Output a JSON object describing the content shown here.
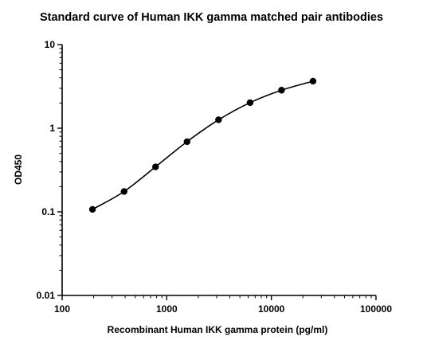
{
  "chart_data": {
    "type": "scatter",
    "title": "Standard curve of Human IKK gamma matched pair antibodies",
    "xlabel": "Recombinant Human IKK gamma protein (pg/ml)",
    "ylabel": "OD450",
    "xscale": "log",
    "yscale": "log",
    "xlim": [
      100,
      100000
    ],
    "ylim": [
      0.01,
      10
    ],
    "x_ticks": [
      "100",
      "1000",
      "10000",
      "100000"
    ],
    "y_ticks": [
      "0.01",
      "0.1",
      "1",
      "10"
    ],
    "grid": false,
    "legend": "none",
    "series": [
      {
        "x": [
          195,
          391,
          781,
          1563,
          3125,
          6250,
          12500,
          25000
        ],
        "y": [
          0.107,
          0.175,
          0.345,
          0.69,
          1.26,
          2.02,
          2.85,
          3.65
        ]
      }
    ],
    "fit_curve": true,
    "colors": {
      "points": "#000000",
      "curve": "#000000",
      "axes": "#000000"
    }
  }
}
